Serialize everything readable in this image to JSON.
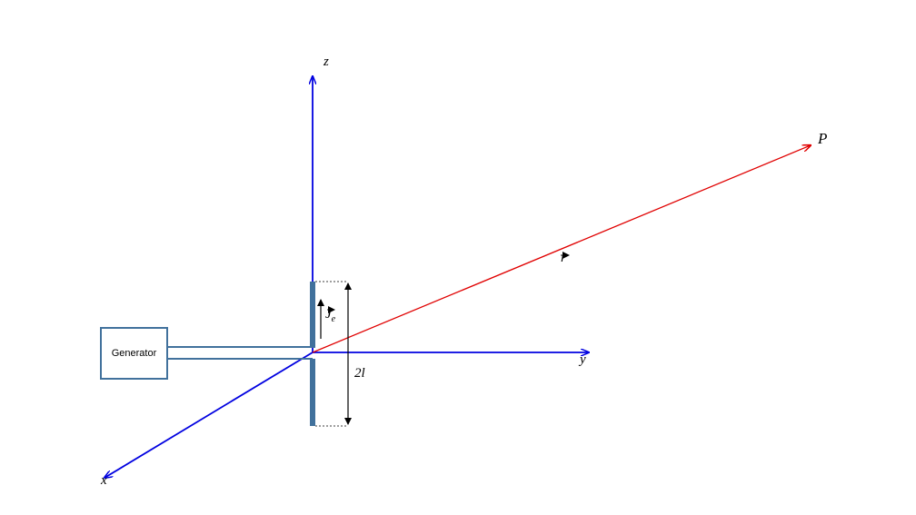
{
  "generator": {
    "label": "Generator"
  },
  "axes": {
    "x_label": "x",
    "y_label": "y",
    "z_label": "z"
  },
  "point_label": "P",
  "vector_r_label": "r",
  "current_label": {
    "main": "J",
    "subscript": "e"
  },
  "length_label": "2l",
  "colors": {
    "axes": "#0000e0",
    "radius_vector": "#e00000",
    "antenna": "#41719c",
    "dimension": "#000000"
  }
}
